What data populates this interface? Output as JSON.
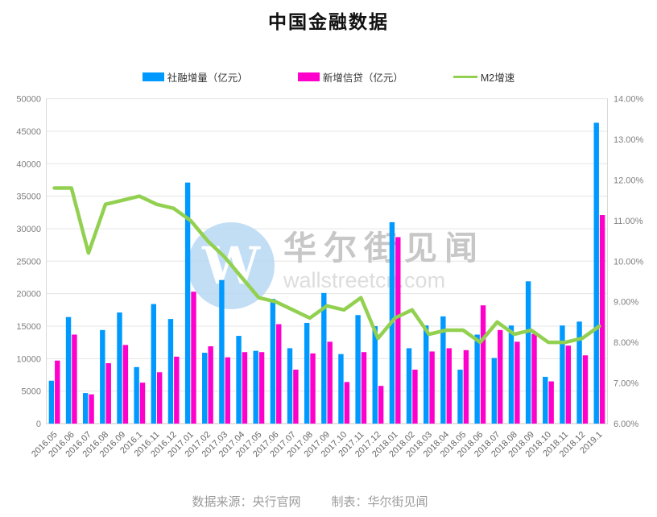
{
  "title": "中国金融数据",
  "legend": [
    {
      "label": "社融增量（亿元）",
      "color": "#0099ff",
      "type": "rect"
    },
    {
      "label": "新增信贷（亿元）",
      "color": "#ff00cc",
      "type": "rect"
    },
    {
      "label": "M2增速",
      "color": "#92d050",
      "type": "line"
    }
  ],
  "watermark": {
    "logo_letter": "W",
    "logo_circle_color": "#b3d6f2",
    "text": "华尔街见闻",
    "subtext": "wallstreetcn.com"
  },
  "footer": {
    "source": "数据来源：央行官网",
    "maker": "制表：华尔街见闻"
  },
  "chart_data": {
    "type": "combo",
    "title": "中国金融数据",
    "grid": true,
    "legend_position": "top",
    "categories": [
      "2016.05",
      "2016.06",
      "2016.07",
      "2016.08",
      "2016.09",
      "2016.1",
      "2016.11",
      "2016.12",
      "2017.01",
      "2017.02",
      "2017.03",
      "2017.04",
      "2017.05",
      "2017.06",
      "2017.07",
      "2017.08",
      "2017.09",
      "2017.10",
      "2017.11",
      "2017.12",
      "2018.01",
      "2018.02",
      "2018.03",
      "2018.04",
      "2018.05",
      "2018.06",
      "2018.07",
      "2018.08",
      "2018.09",
      "2018.10",
      "2018.11",
      "2018.12",
      "2019.1"
    ],
    "left_axis": {
      "min": 0,
      "max": 50000,
      "step": 5000,
      "ticks": [
        "0",
        "5000",
        "10000",
        "15000",
        "20000",
        "25000",
        "30000",
        "35000",
        "40000",
        "45000",
        "50000"
      ]
    },
    "right_axis": {
      "min": 6,
      "max": 14,
      "step": 1,
      "ticks": [
        "6.00%",
        "7.00%",
        "8.00%",
        "9.00%",
        "10.00%",
        "11.00%",
        "12.00%",
        "13.00%",
        "14.00%"
      ]
    },
    "series": [
      {
        "name": "社融增量（亿元）",
        "type": "bar",
        "axis": "left",
        "color": "#0099ff",
        "values": [
          6600,
          16400,
          4700,
          14400,
          17100,
          8700,
          18400,
          16100,
          37100,
          10900,
          22100,
          13500,
          11200,
          19200,
          11600,
          15500,
          20100,
          10700,
          16700,
          15000,
          31000,
          11600,
          15100,
          16500,
          8300,
          13700,
          10100,
          15100,
          21900,
          7200,
          15100,
          15700,
          46300
        ]
      },
      {
        "name": "新增信贷（亿元）",
        "type": "bar",
        "axis": "left",
        "color": "#ff00cc",
        "values": [
          9700,
          13700,
          4500,
          9300,
          12100,
          6300,
          7900,
          10300,
          20300,
          11900,
          10200,
          11000,
          11000,
          15300,
          8300,
          10800,
          12600,
          6400,
          11000,
          5800,
          28700,
          8300,
          11100,
          11600,
          11300,
          18200,
          14400,
          12600,
          13800,
          6500,
          12000,
          10500,
          32100
        ]
      },
      {
        "name": "M2增速",
        "type": "line",
        "axis": "right",
        "color": "#92d050",
        "values": [
          11.8,
          11.8,
          10.2,
          11.4,
          11.5,
          11.6,
          11.4,
          11.3,
          11.0,
          10.5,
          10.1,
          9.6,
          9.1,
          9.0,
          8.8,
          8.6,
          8.9,
          8.8,
          9.1,
          8.1,
          8.6,
          8.8,
          8.2,
          8.3,
          8.3,
          8.0,
          8.5,
          8.2,
          8.3,
          8.0,
          8.0,
          8.1,
          8.4
        ]
      }
    ]
  }
}
